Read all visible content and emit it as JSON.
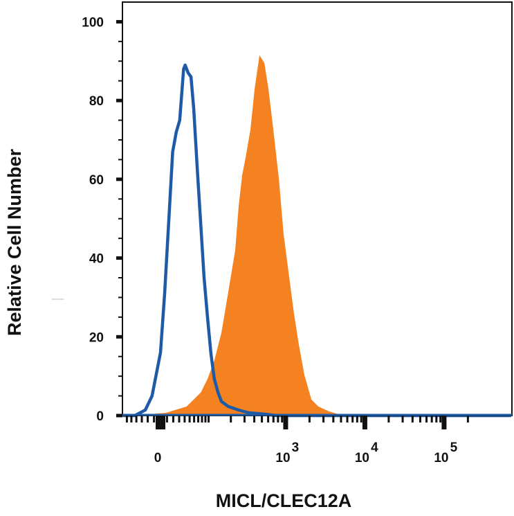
{
  "chart_data": {
    "type": "area",
    "title": "",
    "xlabel": "MICL/CLEC12A",
    "ylabel": "Relative Cell Number",
    "x_scale": "biexponential",
    "xlim": [
      -70,
      700000
    ],
    "ylim": [
      0,
      105
    ],
    "grid": false,
    "legend": "none",
    "x_ticks": [
      {
        "value": 0,
        "label": "0",
        "sup": ""
      },
      {
        "value": 1000,
        "label": "10",
        "sup": "3"
      },
      {
        "value": 10000,
        "label": "10",
        "sup": "4"
      },
      {
        "value": 100000,
        "label": "10",
        "sup": "5"
      }
    ],
    "y_ticks": [
      {
        "value": 0,
        "label": "0"
      },
      {
        "value": 20,
        "label": "20"
      },
      {
        "value": 40,
        "label": "40"
      },
      {
        "value": 60,
        "label": "60"
      },
      {
        "value": 80,
        "label": "80"
      },
      {
        "value": 100,
        "label": "100"
      }
    ],
    "series": [
      {
        "style": "filled",
        "color": "#f58220",
        "x": [
          -50,
          8.5,
          44,
          77,
          97,
          120,
          150,
          185,
          228,
          252,
          280,
          310,
          357,
          404,
          466,
          538,
          605,
          698,
          822,
          942,
          1106,
          1273,
          1468,
          1724,
          2110,
          2580,
          3490,
          4910,
          700000
        ],
        "y": [
          0,
          0.7,
          2.3,
          5.9,
          9.4,
          13.9,
          21,
          31.4,
          42,
          53,
          61,
          65.5,
          72.6,
          83,
          91.5,
          89.5,
          83,
          72.6,
          60,
          46,
          35.2,
          26,
          18,
          10.3,
          4.1,
          2.3,
          1.1,
          0.2,
          0
        ]
      },
      {
        "style": "line",
        "color": "#1f5aa6",
        "x": [
          -70,
          -43,
          -24,
          -13,
          0,
          6.4,
          14,
          19,
          25,
          31,
          38,
          41,
          47,
          53,
          59,
          68,
          77,
          86,
          97,
          108,
          120,
          135,
          150,
          185,
          252,
          343,
          514,
          768,
          700000
        ],
        "y": [
          0,
          0,
          1.4,
          5,
          16,
          31,
          53,
          67,
          72,
          75,
          88,
          89,
          87,
          86,
          78,
          62,
          48,
          35,
          24.5,
          15.6,
          9.4,
          5.9,
          3.6,
          2.3,
          1.4,
          0.7,
          0.4,
          0,
          0
        ]
      }
    ]
  }
}
